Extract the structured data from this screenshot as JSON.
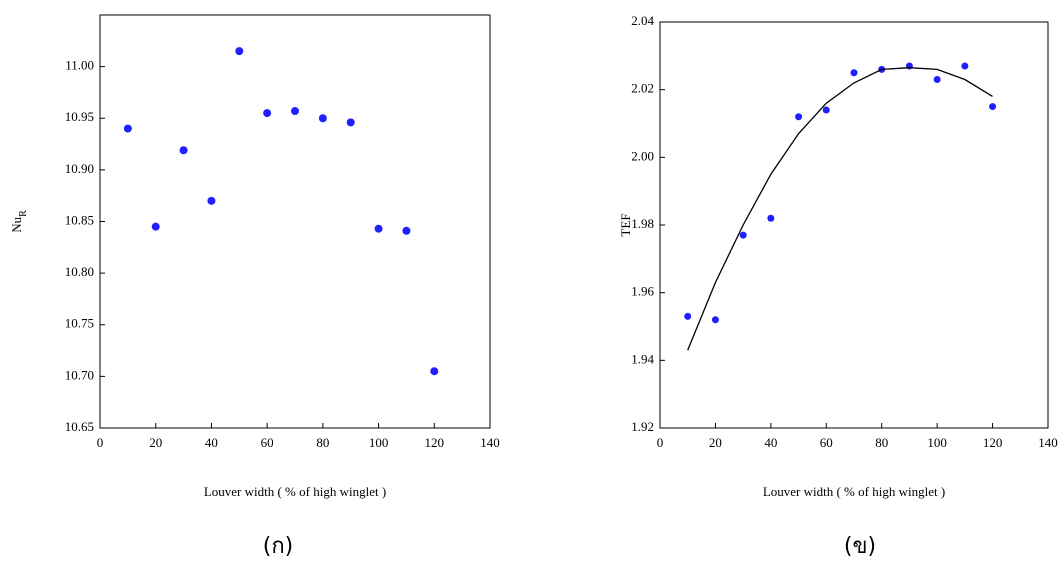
{
  "chart_data": [
    {
      "type": "scatter",
      "y_label": "Nu",
      "y_label_sub": "R",
      "x_label": "Louver width ( % of high winglet )",
      "caption": "(ก)",
      "xlim": [
        0,
        140
      ],
      "ylim": [
        10.65,
        11.05
      ],
      "xticks": [
        0,
        20,
        40,
        60,
        80,
        100,
        120,
        140
      ],
      "yticks": [
        10.65,
        {
          "value": 10.7,
          "label": "10.70"
        },
        10.75,
        {
          "value": 10.8,
          "label": "10.80"
        },
        10.85,
        {
          "value": 10.9,
          "label": "10.90"
        },
        10.95,
        {
          "value": 11.0,
          "label": "11.00"
        }
      ],
      "series": [
        {
          "mode": "markers",
          "color": "#1f1fff",
          "x": [
            10,
            20,
            30,
            40,
            50,
            60,
            70,
            80,
            90,
            100,
            110,
            120
          ],
          "values": [
            10.94,
            10.845,
            10.919,
            10.87,
            11.015,
            10.955,
            10.957,
            10.95,
            10.946,
            10.843,
            10.841,
            10.705
          ]
        }
      ]
    },
    {
      "type": "scatter",
      "y_label": "TEF",
      "x_label": "Louver width ( % of high winglet )",
      "caption": "(ข)",
      "xlim": [
        0,
        140
      ],
      "ylim": [
        1.92,
        2.04
      ],
      "xticks": [
        0,
        20,
        40,
        60,
        80,
        100,
        120,
        140
      ],
      "yticks": [
        1.92,
        1.94,
        1.96,
        1.98,
        {
          "value": 2.0,
          "label": "2.00"
        },
        2.02,
        2.04
      ],
      "series": [
        {
          "mode": "markers",
          "color": "#1f1fff",
          "x": [
            10,
            20,
            30,
            40,
            50,
            60,
            70,
            80,
            90,
            100,
            110,
            120
          ],
          "values": [
            1.953,
            1.952,
            1.977,
            1.982,
            2.012,
            2.014,
            2.025,
            2.026,
            2.027,
            2.023,
            2.027,
            2.015
          ]
        },
        {
          "mode": "line",
          "color": "#000000",
          "x": [
            10,
            20,
            30,
            40,
            50,
            60,
            70,
            80,
            90,
            100,
            110,
            120
          ],
          "values": [
            1.943,
            1.963,
            1.98,
            1.995,
            2.007,
            2.016,
            2.022,
            2.026,
            2.0265,
            2.026,
            2.023,
            2.018
          ]
        }
      ]
    }
  ]
}
